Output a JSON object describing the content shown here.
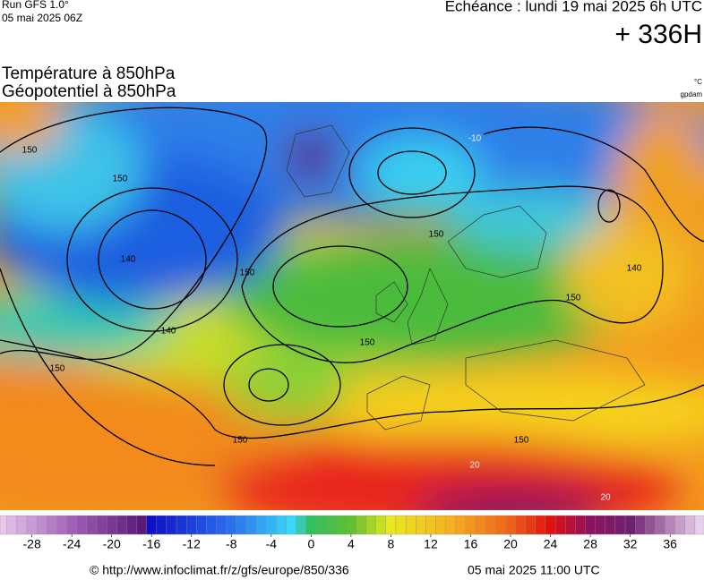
{
  "header": {
    "run": "Run GFS 1.0°",
    "run_date": "05 mai 2025 06Z",
    "echeance": "Echéance : lundi 19 mai 2025 6h UTC",
    "horizon": "+ 336H"
  },
  "titles": {
    "temperature": "Température à 850hPa",
    "geopotential": "Géopotentiel à 850hPa",
    "temperature_unit": "°C",
    "geopotential_unit": "gpdam"
  },
  "contour_labels": [
    "150",
    "150",
    "140",
    "140",
    "150",
    "150",
    "150",
    "150",
    "150",
    "150",
    "150",
    "140",
    "-10",
    "20",
    "20"
  ],
  "colorbar": {
    "lim": [
      -31.2,
      39.4
    ],
    "ticks": [
      -28,
      -24,
      -20,
      -16,
      -12,
      -8,
      -4,
      0,
      4,
      8,
      12,
      16,
      20,
      24,
      28,
      32,
      36
    ]
  },
  "footer": {
    "url": "© http://www.infoclimat.fr/z/gfs/europe/850/336",
    "timestamp": "05 mai 2025 11:00 UTC"
  }
}
